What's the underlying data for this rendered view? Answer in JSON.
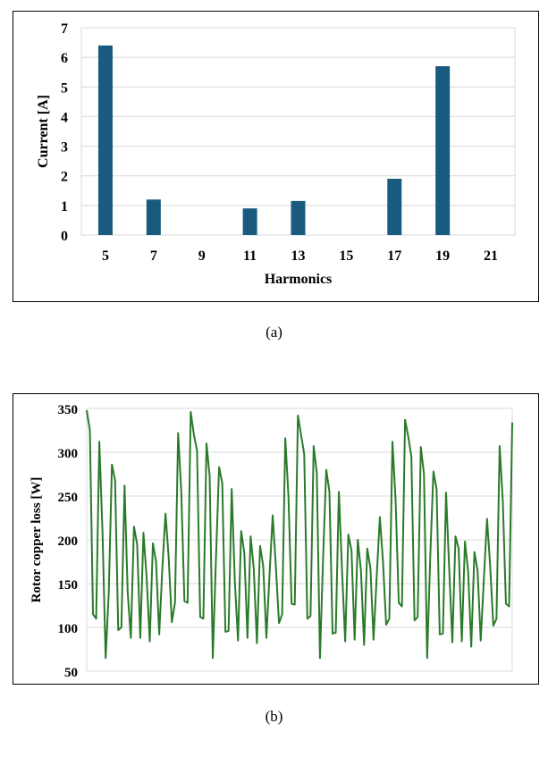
{
  "figure_a": {
    "caption": "(a)",
    "chart_data": {
      "type": "bar",
      "categories": [
        "5",
        "7",
        "9",
        "11",
        "13",
        "15",
        "17",
        "19",
        "21"
      ],
      "values": [
        6.4,
        1.2,
        0,
        0.9,
        1.15,
        0,
        1.9,
        5.7,
        0
      ],
      "xlabel": "Harmonics",
      "ylabel": "Current  [A]",
      "ylim": [
        0,
        7
      ],
      "yticks": [
        0,
        1,
        2,
        3,
        4,
        5,
        6,
        7
      ],
      "grid": true,
      "bar_color": "#1a5a7e"
    }
  },
  "figure_b": {
    "caption": "(b)",
    "chart_data": {
      "type": "line",
      "ylabel": "Rotor copper loss [W]",
      "xlabel": "",
      "ylim": [
        50,
        350
      ],
      "yticks": [
        50,
        100,
        150,
        200,
        250,
        300,
        350
      ],
      "grid": true,
      "line_color": "#2a7a2a",
      "series": [
        {
          "values": [
            348,
            325,
            115,
            110,
            312,
            210,
            65,
            140,
            286,
            268,
            97,
            100,
            262,
            140,
            88,
            215,
            195,
            88,
            208,
            158,
            84,
            196,
            175,
            92,
            168,
            230,
            180,
            106,
            128,
            322,
            255,
            130,
            128,
            346,
            320,
            302,
            112,
            110,
            310,
            273,
            65,
            178,
            283,
            265,
            95,
            96,
            258,
            152,
            85,
            210,
            185,
            88,
            204,
            167,
            82,
            193,
            170,
            88,
            160,
            228,
            170,
            105,
            115,
            316,
            250,
            127,
            126,
            342,
            320,
            298,
            110,
            113,
            307,
            276,
            65,
            180,
            280,
            255,
            93,
            94,
            255,
            165,
            84,
            206,
            188,
            86,
            200,
            165,
            80,
            190,
            168,
            86,
            158,
            226,
            175,
            103,
            110,
            312,
            245,
            128,
            124,
            337,
            318,
            295,
            108,
            112,
            306,
            275,
            65,
            182,
            278,
            258,
            92,
            93,
            254,
            167,
            83,
            204,
            190,
            84,
            198,
            164,
            78,
            186,
            165,
            85,
            155,
            224,
            170,
            102,
            110,
            307,
            245,
            127,
            124,
            334
          ]
        }
      ]
    }
  }
}
